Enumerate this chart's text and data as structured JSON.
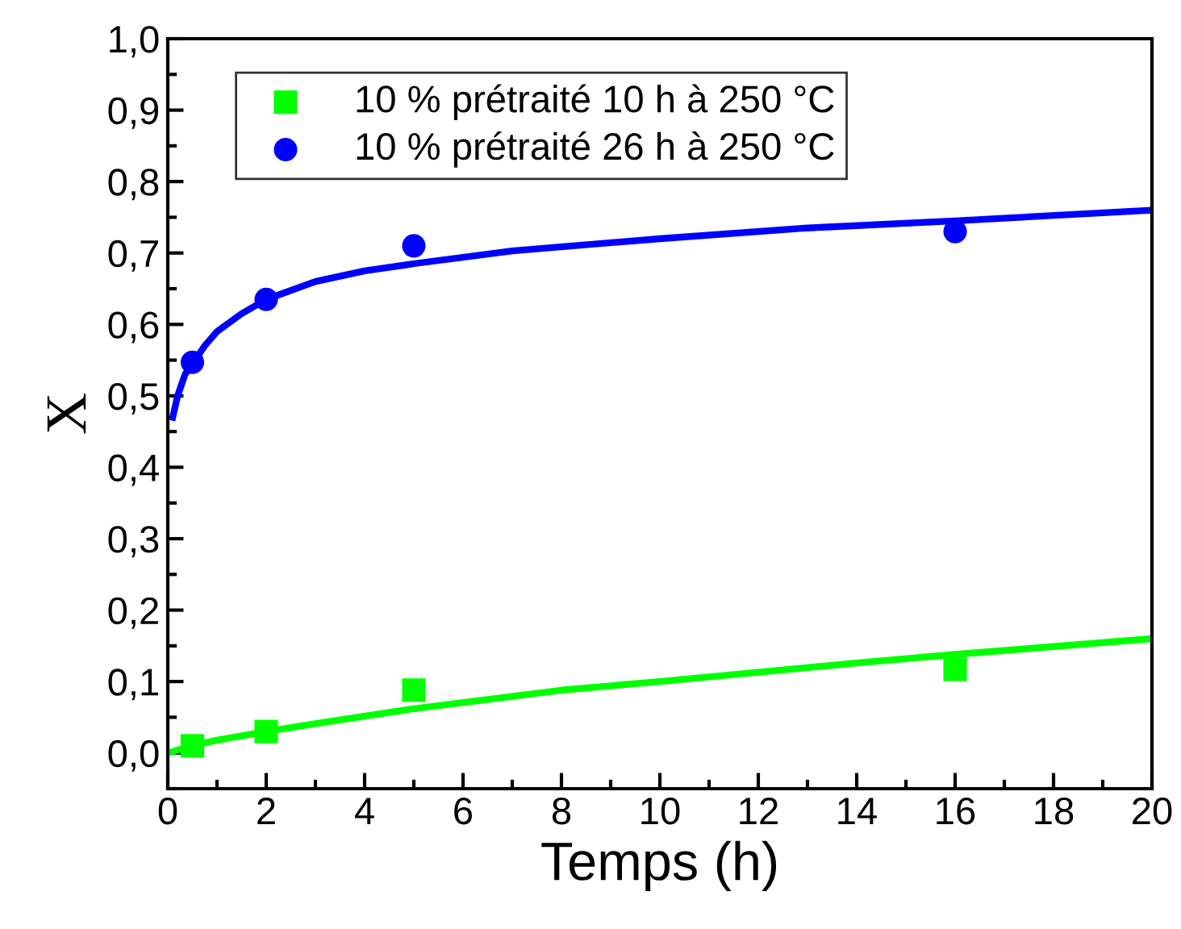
{
  "chart_data": {
    "type": "scatter",
    "xlabel": "Temps (h)",
    "ylabel": "X",
    "xlim": [
      0,
      20
    ],
    "xticks": [
      0,
      2,
      4,
      6,
      8,
      10,
      12,
      14,
      16,
      18,
      20
    ],
    "ylim": [
      -0.05,
      1.0
    ],
    "yticks": [
      {
        "value": 0,
        "label": "0,0"
      },
      {
        "value": 0.1,
        "label": "0,1"
      },
      {
        "value": 0.2,
        "label": "0,2"
      },
      {
        "value": 0.3,
        "label": "0,3"
      },
      {
        "value": 0.4,
        "label": "0,4"
      },
      {
        "value": 0.5,
        "label": "0,5"
      },
      {
        "value": 0.6,
        "label": "0,6"
      },
      {
        "value": 0.7,
        "label": "0,7"
      },
      {
        "value": 0.8,
        "label": "0,8"
      },
      {
        "value": 0.9,
        "label": "0,9"
      },
      {
        "value": 1.0,
        "label": "1,0"
      }
    ],
    "grid": false,
    "legend": "top left",
    "series": [
      {
        "name": "10 % prétraité 10 h à 250 °C",
        "marker": "square",
        "color": "#00ff00",
        "x": [
          0.5,
          2,
          5,
          16
        ],
        "values": [
          0.01,
          0.03,
          0.088,
          0.117
        ]
      },
      {
        "name": "10 % prétraité 26 h à 250 °C",
        "marker": "circle",
        "color": "#0000ff",
        "x": [
          0.5,
          2,
          5,
          16
        ],
        "values": [
          0.547,
          0.635,
          0.71,
          0.73
        ]
      },
      {
        "type": "line",
        "color": "#00ff00",
        "x": [
          0,
          0.5,
          1,
          2,
          3,
          5,
          8,
          10,
          12,
          14,
          16,
          18,
          20
        ],
        "values": [
          0.0,
          0.01,
          0.018,
          0.03,
          0.041,
          0.062,
          0.088,
          0.1,
          0.113,
          0.126,
          0.138,
          0.149,
          0.16
        ]
      },
      {
        "type": "line",
        "color": "#0000ff",
        "x": [
          0.1,
          0.2,
          0.35,
          0.5,
          0.75,
          1,
          1.5,
          2,
          3,
          4,
          5,
          7,
          10,
          13,
          16,
          20
        ],
        "values": [
          0.47,
          0.5,
          0.53,
          0.545,
          0.57,
          0.59,
          0.615,
          0.635,
          0.66,
          0.675,
          0.685,
          0.703,
          0.72,
          0.735,
          0.745,
          0.76
        ]
      }
    ]
  }
}
